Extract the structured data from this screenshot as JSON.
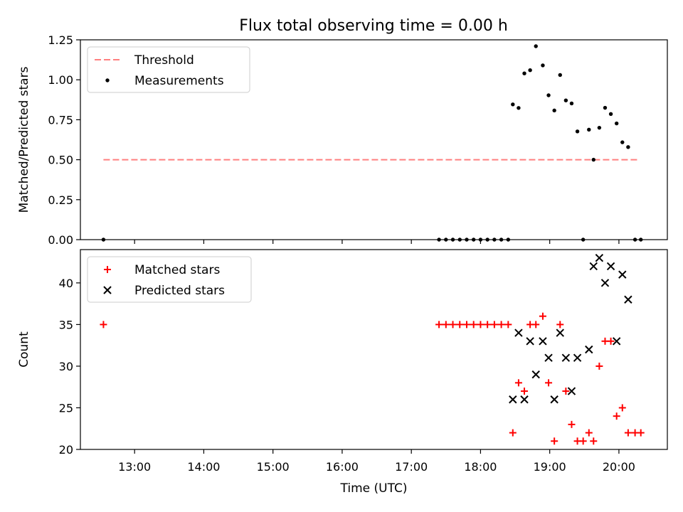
{
  "title": "Flux total observing time = 0.00 h",
  "chart_data": [
    {
      "type": "scatter",
      "ylabel": "Matched/Predicted stars",
      "xlim": [
        "12:13",
        "20:42"
      ],
      "ylim": [
        0,
        1.25
      ],
      "yticks": [
        "0.00",
        "0.25",
        "0.50",
        "0.75",
        "1.00",
        "1.25"
      ],
      "legend": {
        "position": "top-left",
        "entries": [
          "Threshold",
          "Measurements"
        ]
      },
      "threshold": {
        "name": "Threshold",
        "value": 0.5,
        "x": [
          "12:33",
          "20:18"
        ],
        "color": "#ff7f7f",
        "style": "dashed"
      },
      "series": [
        {
          "name": "Measurements",
          "color": "#000000",
          "marker": "dot",
          "points": [
            [
              "12:33",
              0.0
            ],
            [
              "17:24",
              0.0
            ],
            [
              "17:30",
              0.0
            ],
            [
              "17:36",
              0.0
            ],
            [
              "17:42",
              0.0
            ],
            [
              "17:48",
              0.0
            ],
            [
              "17:54",
              0.0
            ],
            [
              "18:00",
              0.0
            ],
            [
              "18:06",
              0.0
            ],
            [
              "18:12",
              0.0
            ],
            [
              "18:18",
              0.0
            ],
            [
              "18:24",
              0.0
            ],
            [
              "18:28",
              0.846
            ],
            [
              "18:33",
              0.824
            ],
            [
              "18:38",
              1.04
            ],
            [
              "18:43",
              1.06
            ],
            [
              "18:48",
              1.21
            ],
            [
              "18:54",
              1.09
            ],
            [
              "18:59",
              0.903
            ],
            [
              "19:04",
              0.808
            ],
            [
              "19:09",
              1.03
            ],
            [
              "19:14",
              0.871
            ],
            [
              "19:19",
              0.852
            ],
            [
              "19:24",
              0.677
            ],
            [
              "19:29",
              0.0
            ],
            [
              "19:34",
              0.688
            ],
            [
              "19:38",
              0.5
            ],
            [
              "19:43",
              0.7
            ],
            [
              "19:48",
              0.825
            ],
            [
              "19:53",
              0.786
            ],
            [
              "19:58",
              0.727
            ],
            [
              "20:03",
              0.609
            ],
            [
              "20:08",
              0.579
            ],
            [
              "20:14",
              0.0
            ],
            [
              "20:19",
              0.0
            ]
          ]
        }
      ]
    },
    {
      "type": "scatter",
      "ylabel": "Count",
      "xlabel": "Time (UTC)",
      "xlim": [
        "12:13",
        "20:42"
      ],
      "ylim": [
        20,
        44
      ],
      "yticks": [
        "20",
        "25",
        "30",
        "35",
        "40"
      ],
      "xticks": [
        "13:00",
        "14:00",
        "15:00",
        "16:00",
        "17:00",
        "18:00",
        "19:00",
        "20:00"
      ],
      "legend": {
        "position": "top-left",
        "entries": [
          "Matched stars",
          "Predicted stars"
        ]
      },
      "series": [
        {
          "name": "Matched stars",
          "color": "#ff0000",
          "marker": "plus",
          "points": [
            [
              "12:33",
              35
            ],
            [
              "17:24",
              35
            ],
            [
              "17:30",
              35
            ],
            [
              "17:36",
              35
            ],
            [
              "17:42",
              35
            ],
            [
              "17:48",
              35
            ],
            [
              "17:54",
              35
            ],
            [
              "18:00",
              35
            ],
            [
              "18:06",
              35
            ],
            [
              "18:12",
              35
            ],
            [
              "18:18",
              35
            ],
            [
              "18:24",
              35
            ],
            [
              "18:28",
              22
            ],
            [
              "18:33",
              28
            ],
            [
              "18:38",
              27
            ],
            [
              "18:43",
              35
            ],
            [
              "18:48",
              35
            ],
            [
              "18:54",
              36
            ],
            [
              "18:59",
              28
            ],
            [
              "19:04",
              21
            ],
            [
              "19:09",
              35
            ],
            [
              "19:14",
              27
            ],
            [
              "19:19",
              23
            ],
            [
              "19:24",
              21
            ],
            [
              "19:29",
              21
            ],
            [
              "19:34",
              22
            ],
            [
              "19:38",
              21
            ],
            [
              "19:43",
              30
            ],
            [
              "19:48",
              33
            ],
            [
              "19:53",
              33
            ],
            [
              "19:58",
              24
            ],
            [
              "20:03",
              25
            ],
            [
              "20:08",
              22
            ],
            [
              "20:14",
              22
            ],
            [
              "20:19",
              22
            ]
          ]
        },
        {
          "name": "Predicted stars",
          "color": "#000000",
          "marker": "x",
          "points": [
            [
              "18:28",
              26
            ],
            [
              "18:33",
              34
            ],
            [
              "18:38",
              26
            ],
            [
              "18:43",
              33
            ],
            [
              "18:48",
              29
            ],
            [
              "18:54",
              33
            ],
            [
              "18:59",
              31
            ],
            [
              "19:04",
              26
            ],
            [
              "19:09",
              34
            ],
            [
              "19:14",
              31
            ],
            [
              "19:19",
              27
            ],
            [
              "19:24",
              31
            ],
            [
              "19:34",
              32
            ],
            [
              "19:38",
              42
            ],
            [
              "19:43",
              43
            ],
            [
              "19:48",
              40
            ],
            [
              "19:53",
              42
            ],
            [
              "19:58",
              33
            ],
            [
              "20:03",
              41
            ],
            [
              "20:08",
              38
            ]
          ]
        }
      ]
    }
  ]
}
